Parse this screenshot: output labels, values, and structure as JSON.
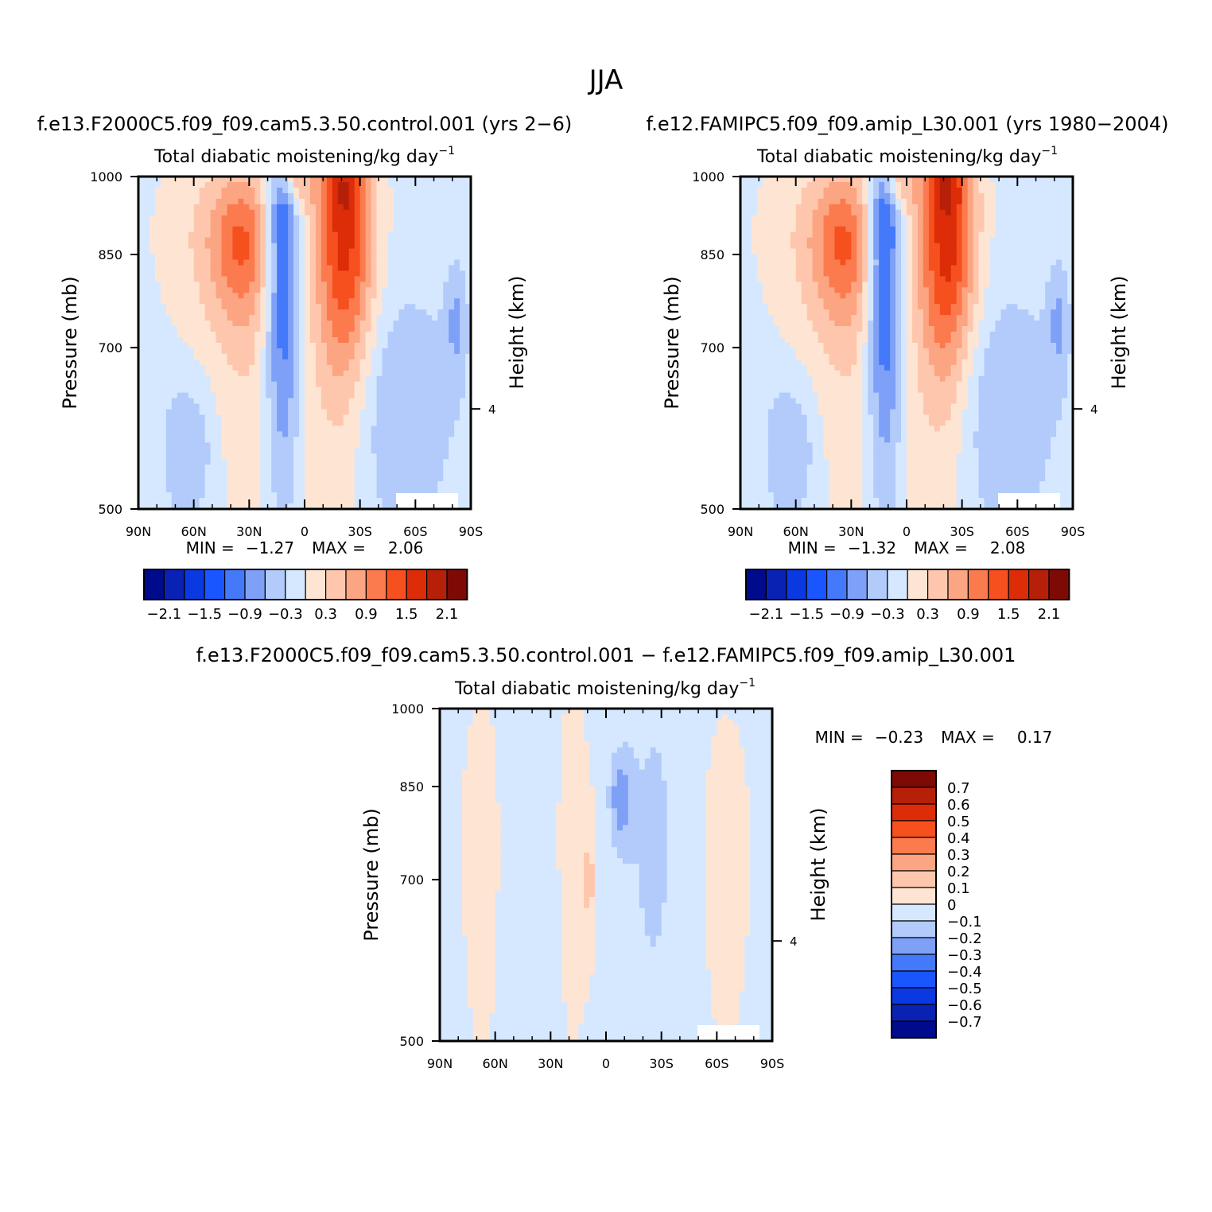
{
  "page_title": "JJA",
  "chart_data": [
    {
      "type": "heatmap",
      "id": "control",
      "title": "f.e13.F2000C5.f09_f09.cam5.3.50.control.001 (yrs 2−6)",
      "subtitle": "Total diabatic moistening/kg day",
      "subtitle_sup": "−1",
      "ylabel": "Pressure (mb)",
      "ylabel_right": "Height (km)",
      "ylim": [
        1000,
        500
      ],
      "yticks": [
        "500",
        "700",
        "850",
        "1000"
      ],
      "ytick_values": [
        500,
        700,
        850,
        1000
      ],
      "right_ticks": [
        "4"
      ],
      "right_tick_pressure": 616,
      "xlim": [
        90,
        -90
      ],
      "xticks": [
        "90N",
        "60N",
        "30N",
        "0",
        "30S",
        "60S",
        "90S"
      ],
      "xtick_values": [
        90,
        60,
        30,
        0,
        -30,
        -60,
        -90
      ],
      "stats": {
        "min_label": "MIN =",
        "min": "−1.27",
        "max_label": "MAX =",
        "max": "2.06"
      },
      "colorbar_labels": [
        "−2.1",
        "−1.5",
        "−0.9",
        "−0.3",
        "0.3",
        "0.9",
        "1.5",
        "2.1"
      ],
      "blobs": [
        {
          "lat": 62,
          "p": 570,
          "w": 10,
          "h": 60,
          "v": -0.5
        },
        {
          "lat": -45,
          "p": 620,
          "w": 22,
          "h": 110,
          "v": -0.5
        },
        {
          "lat": -82,
          "p": 740,
          "w": 4,
          "h": 60,
          "v": -0.5
        },
        {
          "lat": 28,
          "p": 740,
          "w": 20,
          "h": 250,
          "v": 0.4
        },
        {
          "lat": -18,
          "p": 640,
          "w": 18,
          "h": 200,
          "v": 0.3
        },
        {
          "lat": 55,
          "p": 890,
          "w": 22,
          "h": 130,
          "v": 0.32
        },
        {
          "lat": 34,
          "p": 870,
          "w": 12,
          "h": 90,
          "v": 0.9
        },
        {
          "lat": 12,
          "p": 780,
          "w": 7,
          "h": 190,
          "v": -1.3
        },
        {
          "lat": 12,
          "p": 930,
          "w": 5,
          "h": 60,
          "v": -0.5
        },
        {
          "lat": 5,
          "p": 990,
          "w": 6,
          "h": 40,
          "v": 0.7
        },
        {
          "lat": -22,
          "p": 880,
          "w": 11,
          "h": 170,
          "v": 1.6
        },
        {
          "lat": -20,
          "p": 990,
          "w": 10,
          "h": 50,
          "v": 0.6
        }
      ]
    },
    {
      "type": "heatmap",
      "id": "amip",
      "title": "f.e12.FAMIPC5.f09_f09.amip_L30.001 (yrs 1980−2004)",
      "subtitle": "Total diabatic moistening/kg day",
      "subtitle_sup": "−1",
      "ylabel": "Pressure (mb)",
      "ylabel_right": "Height (km)",
      "ylim": [
        1000,
        500
      ],
      "yticks": [
        "500",
        "700",
        "850",
        "1000"
      ],
      "ytick_values": [
        500,
        700,
        850,
        1000
      ],
      "right_ticks": [
        "4"
      ],
      "right_tick_pressure": 616,
      "xlim": [
        90,
        -90
      ],
      "xticks": [
        "90N",
        "60N",
        "30N",
        "0",
        "30S",
        "60S",
        "90S"
      ],
      "xtick_values": [
        90,
        60,
        30,
        0,
        -30,
        -60,
        -90
      ],
      "stats": {
        "min_label": "MIN =",
        "min": "−1.32",
        "max_label": "MAX =",
        "max": "2.08"
      },
      "colorbar_labels": [
        "−2.1",
        "−1.5",
        "−0.9",
        "−0.3",
        "0.3",
        "0.9",
        "1.5",
        "2.1"
      ],
      "blobs": [
        {
          "lat": 62,
          "p": 570,
          "w": 10,
          "h": 60,
          "v": -0.5
        },
        {
          "lat": -45,
          "p": 620,
          "w": 22,
          "h": 110,
          "v": -0.5
        },
        {
          "lat": -82,
          "p": 740,
          "w": 4,
          "h": 60,
          "v": -0.5
        },
        {
          "lat": 28,
          "p": 740,
          "w": 20,
          "h": 250,
          "v": 0.4
        },
        {
          "lat": -18,
          "p": 640,
          "w": 18,
          "h": 200,
          "v": 0.3
        },
        {
          "lat": 55,
          "p": 890,
          "w": 22,
          "h": 130,
          "v": 0.32
        },
        {
          "lat": 34,
          "p": 870,
          "w": 12,
          "h": 90,
          "v": 0.9
        },
        {
          "lat": 12,
          "p": 780,
          "w": 7,
          "h": 190,
          "v": -1.35
        },
        {
          "lat": 12,
          "p": 930,
          "w": 5,
          "h": 60,
          "v": -0.5
        },
        {
          "lat": 5,
          "p": 990,
          "w": 6,
          "h": 40,
          "v": 0.7
        },
        {
          "lat": -22,
          "p": 880,
          "w": 11,
          "h": 170,
          "v": 1.65
        },
        {
          "lat": -20,
          "p": 990,
          "w": 10,
          "h": 50,
          "v": 0.6
        }
      ]
    },
    {
      "type": "heatmap",
      "id": "difference",
      "title": "f.e13.F2000C5.f09_f09.cam5.3.50.control.001 − f.e12.FAMIPC5.f09_f09.amip_L30.001",
      "subtitle": "Total diabatic moistening/kg day",
      "subtitle_sup": "−1",
      "ylabel": "Pressure (mb)",
      "ylabel_right": "Height (km)",
      "ylim": [
        1000,
        500
      ],
      "yticks": [
        "500",
        "700",
        "850",
        "1000"
      ],
      "ytick_values": [
        500,
        700,
        850,
        1000
      ],
      "right_ticks": [
        "4"
      ],
      "right_tick_pressure": 616,
      "xlim": [
        90,
        -90
      ],
      "xticks": [
        "90N",
        "60N",
        "30N",
        "0",
        "30S",
        "60S",
        "90S"
      ],
      "xtick_values": [
        90,
        60,
        30,
        0,
        -30,
        -60,
        -90
      ],
      "stats": {
        "min_label": "MIN =",
        "min": "−0.23",
        "max_label": "MAX =",
        "max": "0.17"
      },
      "colorbar_labels": [
        "0.7",
        "0.6",
        "0.5",
        "0.4",
        "0.3",
        "0.2",
        "0.1",
        "0",
        "−0.1",
        "−0.2",
        "−0.3",
        "−0.4",
        "−0.5",
        "−0.6",
        "−0.7"
      ],
      "blobs": [
        {
          "lat": 64,
          "p": 750,
          "w": 12,
          "h": 260,
          "v": 0.08
        },
        {
          "lat": 42,
          "p": 750,
          "w": 12,
          "h": 260,
          "v": -0.08
        },
        {
          "lat": 20,
          "p": 760,
          "w": 12,
          "h": 270,
          "v": 0.08
        },
        {
          "lat": 9,
          "p": 700,
          "w": 2,
          "h": 60,
          "v": 0.15
        },
        {
          "lat": -8,
          "p": 830,
          "w": 4,
          "h": 50,
          "v": -0.22
        },
        {
          "lat": -30,
          "p": 760,
          "w": 18,
          "h": 280,
          "v": -0.08
        },
        {
          "lat": -60,
          "p": 740,
          "w": 16,
          "h": 260,
          "v": 0.08
        }
      ]
    }
  ],
  "colors": {
    "diverging_16": [
      "#000a8c",
      "#0a22b4",
      "#0a38e1",
      "#1a56ff",
      "#4479fa",
      "#7ea0f7",
      "#b2cbfb",
      "#d5e8ff",
      "#fee5d3",
      "#fec7ad",
      "#fca582",
      "#fb7b4f",
      "#f6501f",
      "#dd2c08",
      "#b72008",
      "#7e0a05"
    ],
    "diff_scale": [
      "#7e0a05",
      "#b72008",
      "#dd2c08",
      "#f6501f",
      "#fb7b4f",
      "#fca582",
      "#fec7ad",
      "#fee5d3",
      "#d5e8ff",
      "#b2cbfb",
      "#7ea0f7",
      "#4479fa",
      "#1a56ff",
      "#0a38e1",
      "#0a22b4",
      "#000a8c"
    ]
  }
}
